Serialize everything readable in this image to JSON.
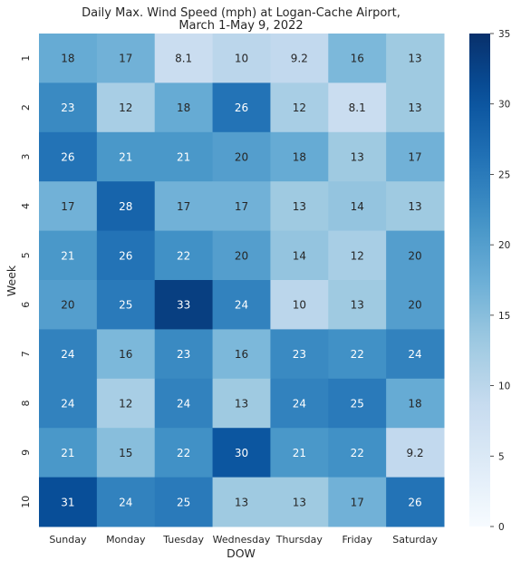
{
  "chart_data": {
    "type": "heatmap",
    "title_lines": [
      "Daily Max. Wind Speed (mph) at Logan-Cache Airport,",
      "March 1-May 9, 2022"
    ],
    "xlabel": "DOW",
    "ylabel": "Week",
    "x_categories": [
      "Sunday",
      "Monday",
      "Tuesday",
      "Wednesday",
      "Thursday",
      "Friday",
      "Saturday"
    ],
    "y_categories": [
      "1",
      "2",
      "3",
      "4",
      "5",
      "6",
      "7",
      "8",
      "9",
      "10"
    ],
    "values": [
      [
        18,
        17,
        8.1,
        10,
        9.2,
        16,
        13
      ],
      [
        23,
        12,
        18,
        26,
        12,
        8.1,
        13
      ],
      [
        26,
        21,
        21,
        20,
        18,
        13,
        17
      ],
      [
        17,
        28,
        17,
        17,
        13,
        14,
        13
      ],
      [
        21,
        26,
        22,
        20,
        14,
        12,
        20
      ],
      [
        20,
        25,
        33,
        24,
        10,
        13,
        20
      ],
      [
        24,
        16,
        23,
        16,
        23,
        22,
        24
      ],
      [
        24,
        12,
        24,
        13,
        24,
        25,
        18
      ],
      [
        21,
        15,
        22,
        30,
        21,
        22,
        9.2
      ],
      [
        31,
        24,
        25,
        13,
        13,
        17,
        26
      ]
    ],
    "colormap": "Blues",
    "vmin": 0,
    "vmax": 35,
    "colorbar_ticks": [
      0,
      5,
      10,
      15,
      20,
      25,
      30,
      35
    ],
    "colorbar_position": "right",
    "grid": false
  }
}
